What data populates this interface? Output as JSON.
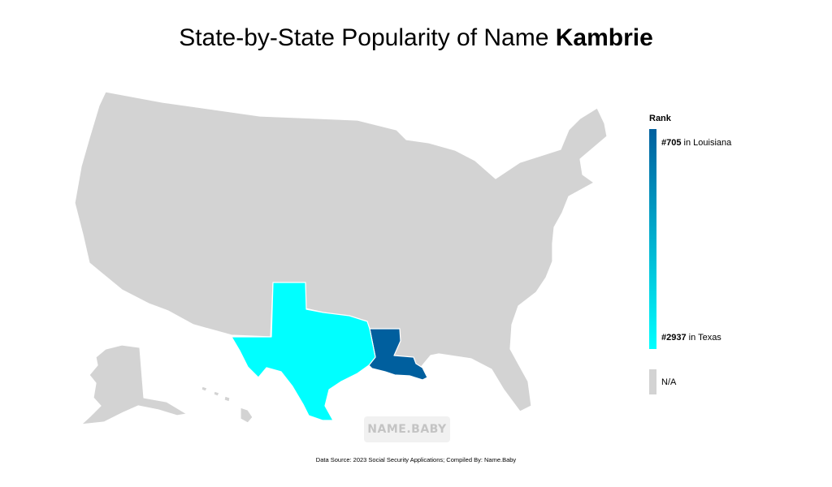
{
  "title": {
    "prefix": "State-by-State Popularity of Name",
    "name": "Kambrie"
  },
  "legend": {
    "title": "Rank",
    "high": {
      "rank": "#705",
      "text": "in Louisiana"
    },
    "low": {
      "rank": "#2937",
      "text": "in Texas"
    },
    "na_label": "N/A",
    "gradient_colors": [
      "#005f9e",
      "#00ffff"
    ],
    "na_color": "#d3d3d3"
  },
  "map": {
    "default_fill": "#d3d3d3",
    "highlighted": [
      {
        "state": "Louisiana",
        "rank": 705,
        "color": "#005f9e"
      },
      {
        "state": "Texas",
        "rank": 2937,
        "color": "#00ffff"
      }
    ]
  },
  "watermark": "NAME.BABY",
  "footer": "Data Source: 2023 Social Security Applications; Compiled By: Name.Baby"
}
